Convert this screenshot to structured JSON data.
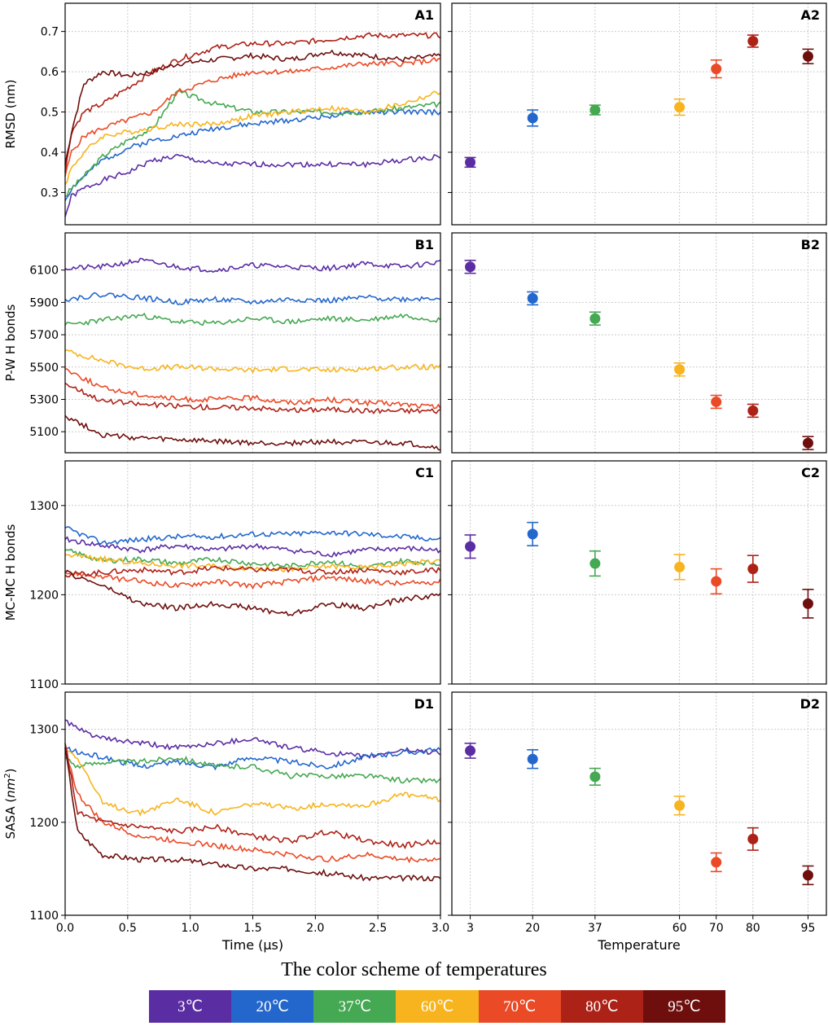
{
  "colors": {
    "t3": "#5b2da3",
    "t20": "#2367cc",
    "t37": "#45a852",
    "t60": "#f7b41e",
    "t70": "#ea4a26",
    "t80": "#ad2217",
    "t95": "#6e0f0d"
  },
  "chart_data": [
    {
      "panel": "A1",
      "type": "line",
      "ylabel": "RMSD (nm)",
      "xlabel": "",
      "xlim": [
        0,
        3.0
      ],
      "ylim": [
        0.22,
        0.77
      ],
      "yticks": [
        0.3,
        0.4,
        0.5,
        0.6,
        0.7
      ],
      "ytick_labels": [
        "0.3",
        "0.4",
        "0.5",
        "0.6",
        "0.7"
      ],
      "series": [
        {
          "name": "3°C",
          "x": [
            0,
            0.05,
            0.15,
            0.3,
            0.5,
            0.7,
            0.9,
            1.2,
            1.5,
            1.8,
            2.1,
            2.4,
            2.7,
            3.0
          ],
          "values": [
            0.24,
            0.29,
            0.31,
            0.33,
            0.35,
            0.38,
            0.39,
            0.37,
            0.37,
            0.37,
            0.37,
            0.37,
            0.38,
            0.39
          ]
        },
        {
          "name": "20°C",
          "x": [
            0,
            0.05,
            0.15,
            0.3,
            0.5,
            0.7,
            0.9,
            1.2,
            1.5,
            1.8,
            2.1,
            2.4,
            2.7,
            3.0
          ],
          "values": [
            0.28,
            0.31,
            0.34,
            0.38,
            0.41,
            0.43,
            0.44,
            0.46,
            0.47,
            0.48,
            0.49,
            0.5,
            0.5,
            0.5
          ]
        },
        {
          "name": "37°C",
          "x": [
            0,
            0.05,
            0.15,
            0.3,
            0.5,
            0.7,
            0.9,
            1.2,
            1.5,
            1.8,
            2.1,
            2.4,
            2.7,
            3.0
          ],
          "values": [
            0.29,
            0.31,
            0.34,
            0.39,
            0.43,
            0.46,
            0.55,
            0.52,
            0.5,
            0.5,
            0.5,
            0.5,
            0.51,
            0.52
          ]
        },
        {
          "name": "60°C",
          "x": [
            0,
            0.05,
            0.15,
            0.3,
            0.5,
            0.7,
            0.9,
            1.2,
            1.5,
            1.8,
            2.1,
            2.4,
            2.7,
            3.0
          ],
          "values": [
            0.32,
            0.36,
            0.4,
            0.44,
            0.45,
            0.46,
            0.47,
            0.47,
            0.49,
            0.5,
            0.51,
            0.5,
            0.52,
            0.55
          ]
        },
        {
          "name": "70°C",
          "x": [
            0,
            0.05,
            0.15,
            0.3,
            0.5,
            0.7,
            0.9,
            1.2,
            1.5,
            1.8,
            2.1,
            2.4,
            2.7,
            3.0
          ],
          "values": [
            0.34,
            0.4,
            0.44,
            0.46,
            0.48,
            0.5,
            0.55,
            0.58,
            0.6,
            0.6,
            0.61,
            0.62,
            0.62,
            0.63
          ]
        },
        {
          "name": "80°C",
          "x": [
            0,
            0.05,
            0.15,
            0.3,
            0.5,
            0.7,
            0.9,
            1.2,
            1.5,
            1.8,
            2.1,
            2.4,
            2.7,
            3.0
          ],
          "values": [
            0.35,
            0.45,
            0.5,
            0.52,
            0.56,
            0.6,
            0.63,
            0.66,
            0.67,
            0.67,
            0.68,
            0.69,
            0.69,
            0.69
          ]
        },
        {
          "name": "95°C",
          "x": [
            0,
            0.05,
            0.15,
            0.3,
            0.5,
            0.7,
            0.9,
            1.2,
            1.5,
            1.8,
            2.1,
            2.4,
            2.7,
            3.0
          ],
          "values": [
            0.37,
            0.45,
            0.57,
            0.6,
            0.59,
            0.6,
            0.62,
            0.63,
            0.64,
            0.63,
            0.65,
            0.64,
            0.63,
            0.64
          ]
        }
      ]
    },
    {
      "panel": "A2",
      "type": "scatter",
      "xlabel": "",
      "ylim": [
        0.22,
        0.77
      ],
      "categories": [
        "3",
        "20",
        "37",
        "60",
        "70",
        "80",
        "95"
      ],
      "values": [
        0.375,
        0.485,
        0.505,
        0.512,
        0.607,
        0.676,
        0.638
      ],
      "errors": [
        0.012,
        0.02,
        0.012,
        0.02,
        0.022,
        0.015,
        0.018
      ]
    },
    {
      "panel": "B1",
      "type": "line",
      "ylabel": "P-W H bonds",
      "xlabel": "",
      "xlim": [
        0,
        3.0
      ],
      "ylim": [
        4970,
        6330
      ],
      "yticks": [
        5100,
        5300,
        5500,
        5700,
        5900,
        6100
      ],
      "ytick_labels": [
        "5100",
        "5300",
        "5500",
        "5700",
        "5900",
        "6100"
      ],
      "series": [
        {
          "name": "3°C",
          "x": [
            0,
            0.3,
            0.6,
            0.9,
            1.2,
            1.5,
            1.8,
            2.1,
            2.4,
            2.7,
            3.0
          ],
          "values": [
            6110,
            6120,
            6160,
            6120,
            6100,
            6130,
            6120,
            6110,
            6140,
            6120,
            6150
          ]
        },
        {
          "name": "20°C",
          "x": [
            0,
            0.3,
            0.6,
            0.9,
            1.2,
            1.5,
            1.8,
            2.1,
            2.4,
            2.7,
            3.0
          ],
          "values": [
            5920,
            5950,
            5930,
            5900,
            5920,
            5900,
            5920,
            5910,
            5930,
            5920,
            5930
          ]
        },
        {
          "name": "37°C",
          "x": [
            0,
            0.3,
            0.6,
            0.9,
            1.2,
            1.5,
            1.8,
            2.1,
            2.4,
            2.7,
            3.0
          ],
          "values": [
            5760,
            5790,
            5820,
            5780,
            5770,
            5800,
            5780,
            5800,
            5790,
            5820,
            5790
          ]
        },
        {
          "name": "60°C",
          "x": [
            0,
            0.3,
            0.6,
            0.9,
            1.2,
            1.5,
            1.8,
            2.1,
            2.4,
            2.7,
            3.0
          ],
          "values": [
            5600,
            5540,
            5490,
            5500,
            5490,
            5480,
            5490,
            5480,
            5490,
            5500,
            5500
          ]
        },
        {
          "name": "70°C",
          "x": [
            0,
            0.3,
            0.6,
            0.9,
            1.2,
            1.5,
            1.8,
            2.1,
            2.4,
            2.7,
            3.0
          ],
          "values": [
            5490,
            5370,
            5330,
            5300,
            5300,
            5310,
            5280,
            5300,
            5280,
            5270,
            5250
          ]
        },
        {
          "name": "80°C",
          "x": [
            0,
            0.3,
            0.6,
            0.9,
            1.2,
            1.5,
            1.8,
            2.1,
            2.4,
            2.7,
            3.0
          ],
          "values": [
            5400,
            5290,
            5270,
            5260,
            5250,
            5250,
            5230,
            5240,
            5230,
            5230,
            5230
          ]
        },
        {
          "name": "95°C",
          "x": [
            0,
            0.3,
            0.6,
            0.9,
            1.2,
            1.5,
            1.8,
            2.1,
            2.4,
            2.7,
            3.0
          ],
          "values": [
            5200,
            5080,
            5060,
            5050,
            5040,
            5030,
            5030,
            5040,
            5030,
            5030,
            5000
          ]
        }
      ]
    },
    {
      "panel": "B2",
      "type": "scatter",
      "xlabel": "",
      "ylim": [
        4970,
        6330
      ],
      "categories": [
        "3",
        "20",
        "37",
        "60",
        "70",
        "80",
        "95"
      ],
      "values": [
        6120,
        5925,
        5800,
        5485,
        5285,
        5230,
        5030
      ],
      "errors": [
        40,
        40,
        40,
        40,
        40,
        40,
        40
      ]
    },
    {
      "panel": "C1",
      "type": "line",
      "ylabel": "MC-MC H bonds",
      "xlabel": "",
      "xlim": [
        0,
        3.0
      ],
      "ylim": [
        1100,
        1350
      ],
      "yticks": [
        1100,
        1200,
        1300
      ],
      "ytick_labels": [
        "1100",
        "1200",
        "1300"
      ],
      "series": [
        {
          "name": "3°C",
          "x": [
            0,
            0.3,
            0.6,
            0.9,
            1.2,
            1.5,
            1.8,
            2.1,
            2.4,
            2.7,
            3.0
          ],
          "values": [
            1262,
            1255,
            1250,
            1255,
            1250,
            1255,
            1250,
            1245,
            1250,
            1252,
            1250
          ]
        },
        {
          "name": "20°C",
          "x": [
            0,
            0.3,
            0.6,
            0.9,
            1.2,
            1.5,
            1.8,
            2.1,
            2.4,
            2.7,
            3.0
          ],
          "values": [
            1275,
            1258,
            1262,
            1265,
            1265,
            1268,
            1268,
            1270,
            1268,
            1265,
            1262
          ]
        },
        {
          "name": "37°C",
          "x": [
            0,
            0.3,
            0.6,
            0.9,
            1.2,
            1.5,
            1.8,
            2.1,
            2.4,
            2.7,
            3.0
          ],
          "values": [
            1250,
            1238,
            1240,
            1235,
            1240,
            1235,
            1232,
            1238,
            1230,
            1238,
            1235
          ]
        },
        {
          "name": "60°C",
          "x": [
            0,
            0.3,
            0.6,
            0.9,
            1.2,
            1.5,
            1.8,
            2.1,
            2.4,
            2.7,
            3.0
          ],
          "values": [
            1245,
            1240,
            1235,
            1233,
            1232,
            1230,
            1228,
            1232,
            1230,
            1235,
            1238
          ]
        },
        {
          "name": "70°C",
          "x": [
            0,
            0.3,
            0.6,
            0.9,
            1.2,
            1.5,
            1.8,
            2.1,
            2.4,
            2.7,
            3.0
          ],
          "values": [
            1225,
            1220,
            1215,
            1210,
            1215,
            1210,
            1215,
            1220,
            1215,
            1212,
            1215
          ]
        },
        {
          "name": "80°C",
          "x": [
            0,
            0.3,
            0.6,
            0.9,
            1.2,
            1.5,
            1.8,
            2.1,
            2.4,
            2.7,
            3.0
          ],
          "values": [
            1222,
            1225,
            1228,
            1225,
            1230,
            1228,
            1228,
            1225,
            1228,
            1225,
            1228
          ]
        },
        {
          "name": "95°C",
          "x": [
            0,
            0.3,
            0.6,
            0.9,
            1.2,
            1.5,
            1.8,
            2.1,
            2.4,
            2.7,
            3.0
          ],
          "values": [
            1225,
            1210,
            1190,
            1185,
            1190,
            1185,
            1178,
            1190,
            1185,
            1195,
            1200
          ]
        }
      ]
    },
    {
      "panel": "C2",
      "type": "scatter",
      "xlabel": "",
      "ylim": [
        1100,
        1350
      ],
      "categories": [
        "3",
        "20",
        "37",
        "60",
        "70",
        "80",
        "95"
      ],
      "values": [
        1254,
        1268,
        1235,
        1231,
        1215,
        1229,
        1190
      ],
      "errors": [
        13,
        13,
        14,
        14,
        14,
        15,
        16
      ]
    },
    {
      "panel": "D1",
      "type": "line",
      "ylabel": "SASA",
      "ylabel_unit": "nm",
      "ylabel_sup": "2",
      "xlabel": "Time (μs)",
      "xlim": [
        0,
        3.0
      ],
      "ylim": [
        1100,
        1340
      ],
      "xticks": [
        0.0,
        0.5,
        1.0,
        1.5,
        2.0,
        2.5,
        3.0
      ],
      "xtick_labels": [
        "0.0",
        "0.5",
        "1.0",
        "1.5",
        "2.0",
        "2.5",
        "3.0"
      ],
      "yticks": [
        1100,
        1200,
        1300
      ],
      "ytick_labels": [
        "1100",
        "1200",
        "1300"
      ],
      "series": [
        {
          "name": "3°C",
          "x": [
            0,
            0.1,
            0.3,
            0.6,
            0.9,
            1.2,
            1.5,
            1.8,
            2.1,
            2.4,
            2.7,
            3.0
          ],
          "values": [
            1310,
            1300,
            1290,
            1285,
            1280,
            1285,
            1290,
            1280,
            1275,
            1270,
            1278,
            1275
          ]
        },
        {
          "name": "20°C",
          "x": [
            0,
            0.1,
            0.3,
            0.6,
            0.9,
            1.2,
            1.5,
            1.8,
            2.1,
            2.4,
            2.7,
            3.0
          ],
          "values": [
            1280,
            1275,
            1270,
            1260,
            1265,
            1260,
            1270,
            1265,
            1260,
            1270,
            1275,
            1278
          ]
        },
        {
          "name": "37°C",
          "x": [
            0,
            0.1,
            0.3,
            0.6,
            0.9,
            1.2,
            1.5,
            1.8,
            2.1,
            2.4,
            2.7,
            3.0
          ],
          "values": [
            1270,
            1260,
            1265,
            1265,
            1270,
            1260,
            1260,
            1250,
            1250,
            1250,
            1245,
            1245
          ]
        },
        {
          "name": "60°C",
          "x": [
            0,
            0.1,
            0.3,
            0.6,
            0.9,
            1.2,
            1.5,
            1.8,
            2.1,
            2.4,
            2.7,
            3.0
          ],
          "values": [
            1280,
            1270,
            1220,
            1210,
            1225,
            1210,
            1220,
            1215,
            1220,
            1218,
            1230,
            1225
          ]
        },
        {
          "name": "70°C",
          "x": [
            0,
            0.1,
            0.3,
            0.6,
            0.9,
            1.2,
            1.5,
            1.8,
            2.1,
            2.4,
            2.7,
            3.0
          ],
          "values": [
            1280,
            1230,
            1200,
            1185,
            1180,
            1175,
            1170,
            1165,
            1160,
            1165,
            1160,
            1160
          ]
        },
        {
          "name": "80°C",
          "x": [
            0,
            0.1,
            0.3,
            0.6,
            0.9,
            1.2,
            1.5,
            1.8,
            2.1,
            2.4,
            2.7,
            3.0
          ],
          "values": [
            1285,
            1210,
            1200,
            1195,
            1190,
            1195,
            1185,
            1180,
            1190,
            1180,
            1175,
            1180
          ]
        },
        {
          "name": "95°C",
          "x": [
            0,
            0.1,
            0.3,
            0.6,
            0.9,
            1.2,
            1.5,
            1.8,
            2.1,
            2.4,
            2.7,
            3.0
          ],
          "values": [
            1280,
            1190,
            1165,
            1160,
            1160,
            1155,
            1150,
            1150,
            1145,
            1140,
            1140,
            1140
          ]
        }
      ]
    },
    {
      "panel": "D2",
      "type": "scatter",
      "xlabel": "Temperature",
      "ylim": [
        1100,
        1340
      ],
      "categories": [
        "3",
        "20",
        "37",
        "60",
        "70",
        "80",
        "95"
      ],
      "values": [
        1277,
        1268,
        1249,
        1218,
        1157,
        1182,
        1143
      ],
      "errors": [
        8,
        10,
        9,
        10,
        10,
        12,
        10
      ]
    }
  ],
  "legend": {
    "title": "The color scheme of temperatures",
    "items": [
      {
        "label": "3℃",
        "color": "#5b2da3"
      },
      {
        "label": "20℃",
        "color": "#2367cc"
      },
      {
        "label": "37℃",
        "color": "#45a852"
      },
      {
        "label": "60℃",
        "color": "#f7b41e"
      },
      {
        "label": "70℃",
        "color": "#ea4a26"
      },
      {
        "label": "80℃",
        "color": "#ad2217"
      },
      {
        "label": "95℃",
        "color": "#6e0f0d"
      }
    ]
  }
}
